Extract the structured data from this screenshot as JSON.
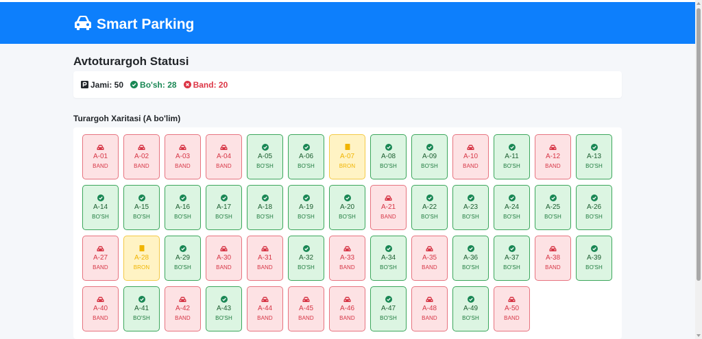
{
  "brand": {
    "title": "Smart Parking",
    "icon": "car-icon"
  },
  "page": {
    "title": "Avtoturargoh Statusi"
  },
  "stats": {
    "total_label": "Jami: 50",
    "free_label": "Bo'sh: 28",
    "busy_label": "Band: 20"
  },
  "map": {
    "title": "Turargoh Xaritasi (A bo'lim)"
  },
  "colors": {
    "navbar": "#0d7ffc",
    "band": "#dc3545",
    "free": "#198754",
    "bron": "#f0b400"
  },
  "status_labels": {
    "band": "BAND",
    "free": "BO'SH",
    "bron": "BRON"
  },
  "spots": [
    {
      "id": "A-01",
      "status": "band"
    },
    {
      "id": "A-02",
      "status": "band"
    },
    {
      "id": "A-03",
      "status": "band"
    },
    {
      "id": "A-04",
      "status": "band"
    },
    {
      "id": "A-05",
      "status": "free"
    },
    {
      "id": "A-06",
      "status": "free"
    },
    {
      "id": "A-07",
      "status": "bron"
    },
    {
      "id": "A-08",
      "status": "free"
    },
    {
      "id": "A-09",
      "status": "free"
    },
    {
      "id": "A-10",
      "status": "band"
    },
    {
      "id": "A-11",
      "status": "free"
    },
    {
      "id": "A-12",
      "status": "band"
    },
    {
      "id": "A-13",
      "status": "free"
    },
    {
      "id": "A-14",
      "status": "free"
    },
    {
      "id": "A-15",
      "status": "free"
    },
    {
      "id": "A-16",
      "status": "free"
    },
    {
      "id": "A-17",
      "status": "free"
    },
    {
      "id": "A-18",
      "status": "free"
    },
    {
      "id": "A-19",
      "status": "free"
    },
    {
      "id": "A-20",
      "status": "free"
    },
    {
      "id": "A-21",
      "status": "band"
    },
    {
      "id": "A-22",
      "status": "free"
    },
    {
      "id": "A-23",
      "status": "free"
    },
    {
      "id": "A-24",
      "status": "free"
    },
    {
      "id": "A-25",
      "status": "free"
    },
    {
      "id": "A-26",
      "status": "free"
    },
    {
      "id": "A-27",
      "status": "band"
    },
    {
      "id": "A-28",
      "status": "bron"
    },
    {
      "id": "A-29",
      "status": "free"
    },
    {
      "id": "A-30",
      "status": "band"
    },
    {
      "id": "A-31",
      "status": "band"
    },
    {
      "id": "A-32",
      "status": "free"
    },
    {
      "id": "A-33",
      "status": "band"
    },
    {
      "id": "A-34",
      "status": "free"
    },
    {
      "id": "A-35",
      "status": "band"
    },
    {
      "id": "A-36",
      "status": "free"
    },
    {
      "id": "A-37",
      "status": "free"
    },
    {
      "id": "A-38",
      "status": "band"
    },
    {
      "id": "A-39",
      "status": "free"
    },
    {
      "id": "A-40",
      "status": "band"
    },
    {
      "id": "A-41",
      "status": "free"
    },
    {
      "id": "A-42",
      "status": "band"
    },
    {
      "id": "A-43",
      "status": "free"
    },
    {
      "id": "A-44",
      "status": "band"
    },
    {
      "id": "A-45",
      "status": "band"
    },
    {
      "id": "A-46",
      "status": "band"
    },
    {
      "id": "A-47",
      "status": "free"
    },
    {
      "id": "A-48",
      "status": "band"
    },
    {
      "id": "A-49",
      "status": "free"
    },
    {
      "id": "A-50",
      "status": "band"
    }
  ]
}
